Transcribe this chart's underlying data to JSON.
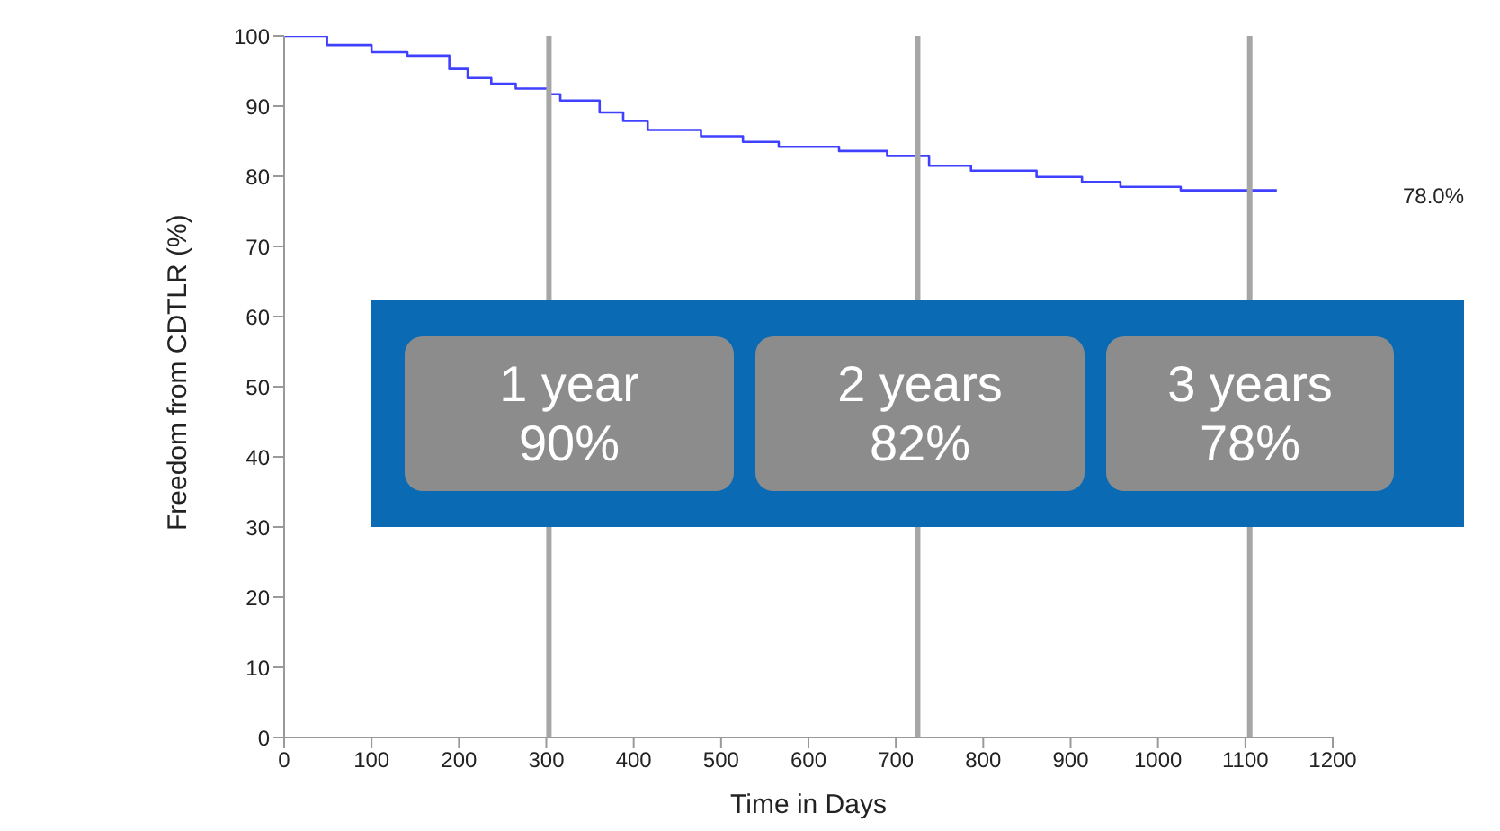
{
  "chart_data": {
    "type": "step",
    "xlabel": "Time in Days",
    "ylabel": "Freedom from CDTLR (%)",
    "x": [
      0,
      49,
      100,
      141,
      189,
      210,
      237,
      265,
      302,
      316,
      361,
      388,
      416,
      477,
      525,
      566,
      635,
      690,
      738,
      786,
      861,
      913,
      957,
      1026,
      1136
    ],
    "series": [
      {
        "color": "#4040ff",
        "values": [
          100,
          98.7,
          97.7,
          97.2,
          95.3,
          94,
          93.2,
          92.5,
          91.7,
          90.8,
          89.1,
          87.9,
          86.6,
          85.7,
          84.9,
          84.2,
          83.6,
          82.9,
          81.5,
          80.8,
          79.9,
          79.2,
          78.5,
          78,
          78
        ]
      }
    ],
    "xlim": [
      0,
      1200
    ],
    "xticks": [
      0,
      100,
      200,
      300,
      400,
      500,
      600,
      700,
      800,
      900,
      1000,
      1100,
      1200
    ],
    "ylim": [
      0,
      100
    ],
    "yticks": [
      0,
      10,
      20,
      30,
      40,
      50,
      60,
      70,
      80,
      90,
      100
    ],
    "grid": false,
    "legend": false,
    "marker": "none",
    "line_style": "solid",
    "ref_lines": [
      {
        "axis": "x",
        "value": 303,
        "color": "#a6a6a6"
      },
      {
        "axis": "x",
        "value": 725,
        "color": "#a6a6a6"
      },
      {
        "axis": "x",
        "value": 1105,
        "color": "#a6a6a6"
      }
    ],
    "annotations": [
      "78.0%",
      "1 year",
      "90%",
      "2 years",
      "82%",
      "3 years",
      "78%"
    ]
  }
}
